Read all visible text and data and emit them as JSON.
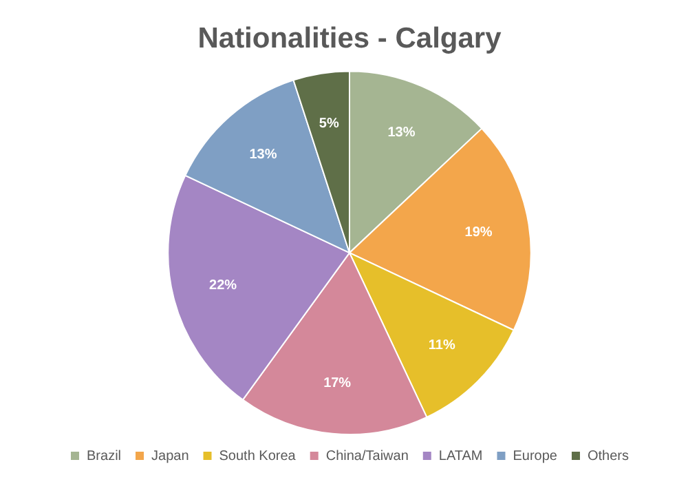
{
  "chart_data": {
    "type": "pie",
    "title": "Nationalities - Calgary",
    "categories": [
      "Brazil",
      "Japan",
      "South Korea",
      "China/Taiwan",
      "LATAM",
      "Europe",
      "Others"
    ],
    "values": [
      13,
      19,
      11,
      17,
      22,
      13,
      5
    ],
    "value_labels": [
      "13%",
      "19%",
      "11%",
      "17%",
      "22%",
      "13%",
      "5%"
    ],
    "colors": [
      "#a5b592",
      "#f3a64b",
      "#e6bf2a",
      "#d4889a",
      "#a486c4",
      "#7f9fc4",
      "#5f6f48"
    ],
    "legend": "bottom"
  }
}
